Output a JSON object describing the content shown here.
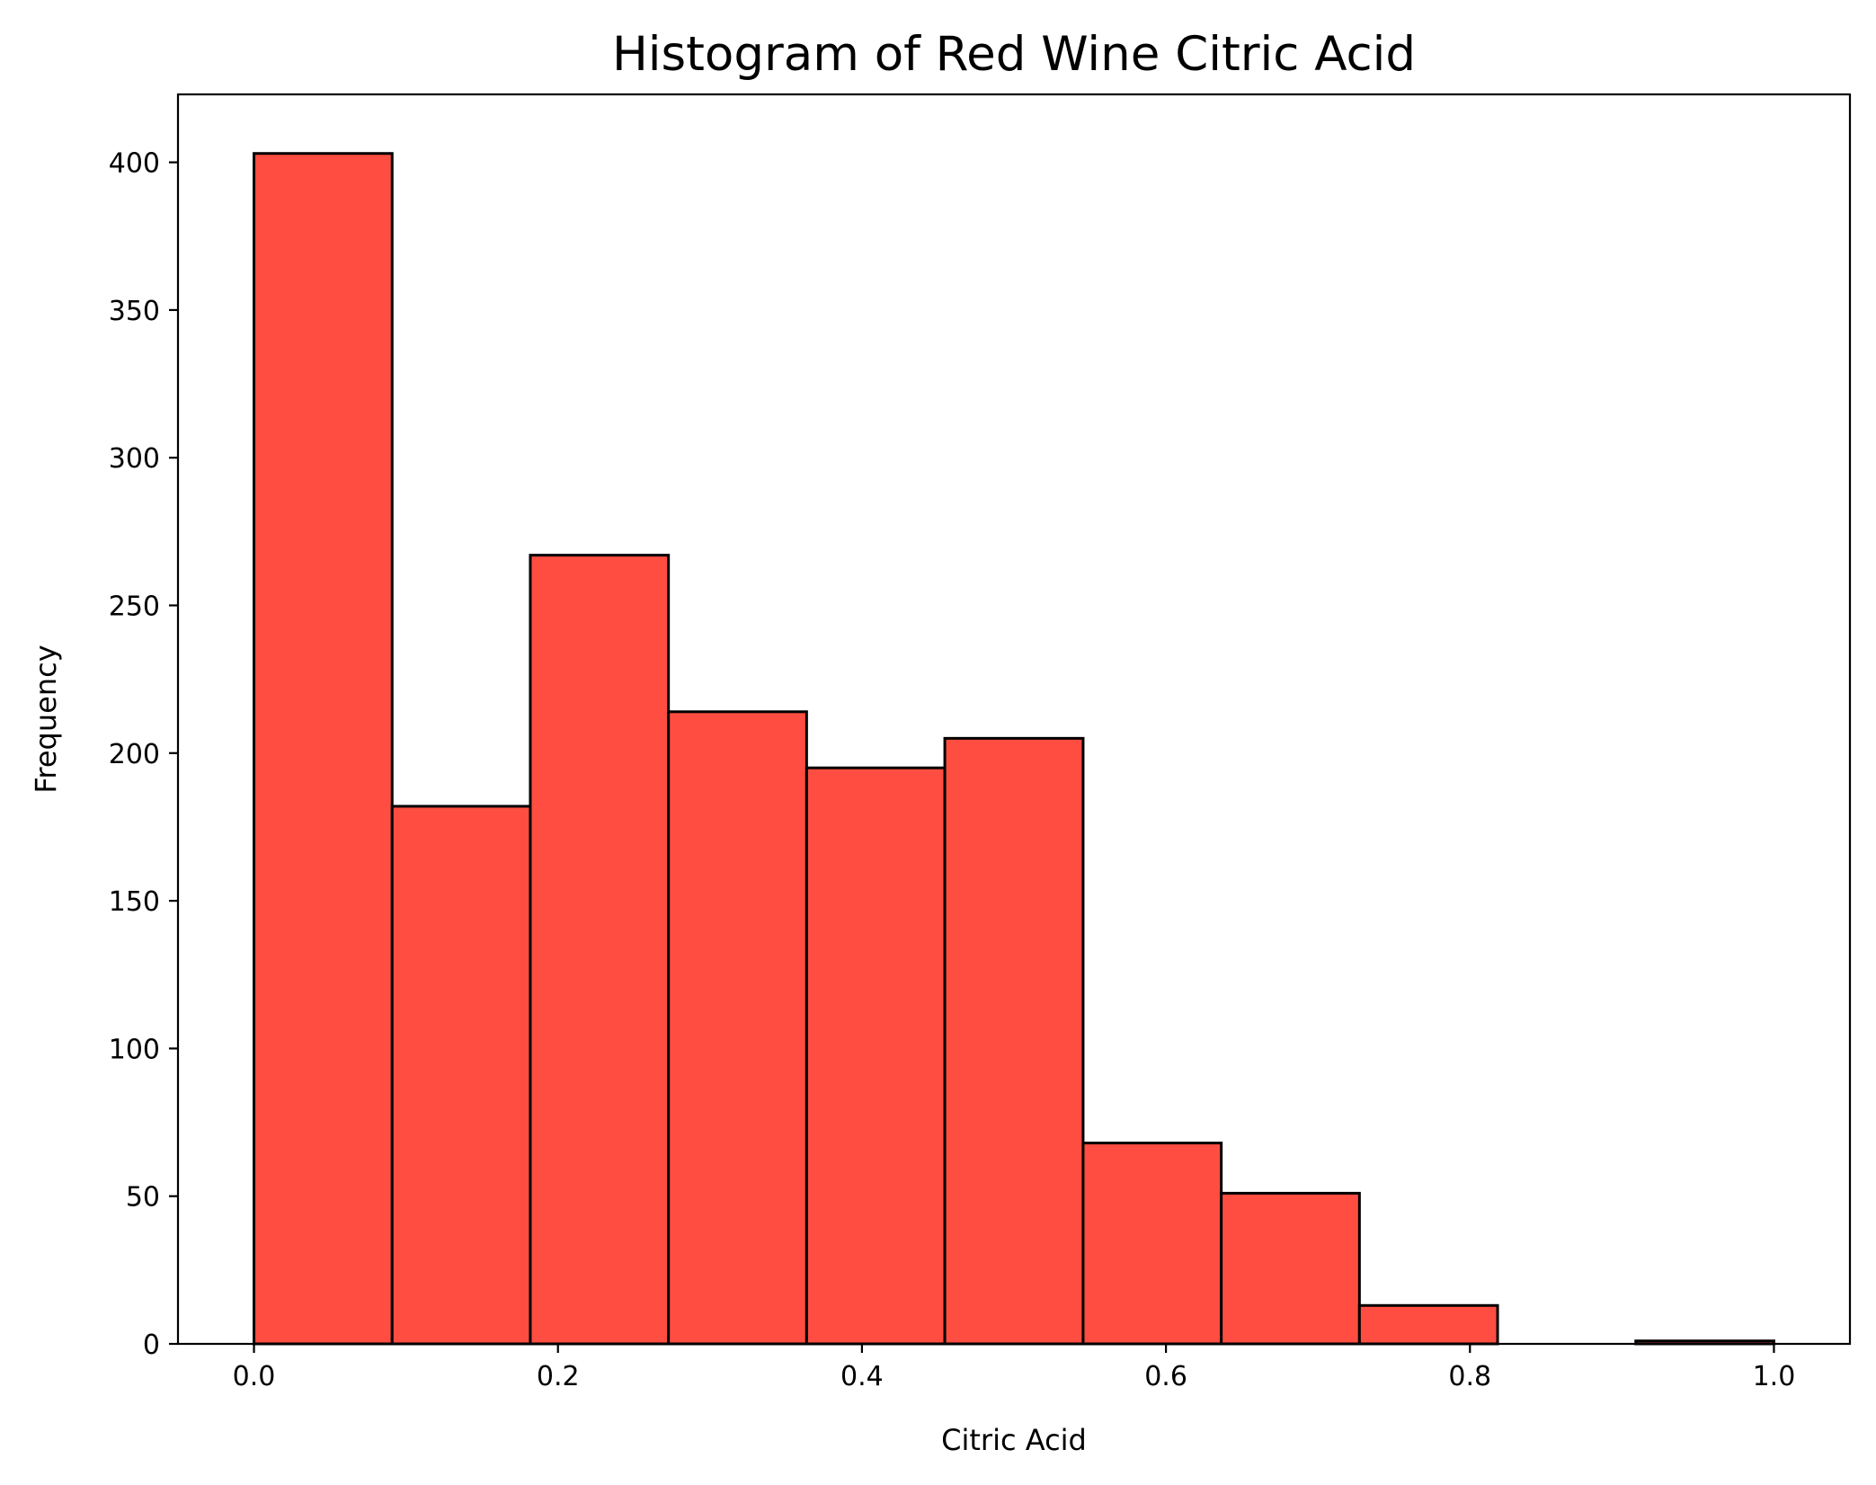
{
  "chart_data": {
    "type": "bar",
    "title": "Histogram of Red Wine Citric Acid",
    "xlabel": "Citric Acid",
    "ylabel": "Frequency",
    "bin_edges": [
      0.0,
      0.0909,
      0.1818,
      0.2727,
      0.3636,
      0.4545,
      0.5455,
      0.6364,
      0.7273,
      0.8182,
      0.9091,
      1.0
    ],
    "values": [
      403,
      182,
      267,
      214,
      195,
      205,
      68,
      51,
      13,
      0,
      1
    ],
    "xlim": [
      -0.05,
      1.05
    ],
    "ylim": [
      0,
      423
    ],
    "xticks": [
      0.0,
      0.2,
      0.4,
      0.6,
      0.8,
      1.0
    ],
    "xtick_labels": [
      "0.0",
      "0.2",
      "0.4",
      "0.6",
      "0.8",
      "1.0"
    ],
    "yticks": [
      0,
      50,
      100,
      150,
      200,
      250,
      300,
      350,
      400
    ],
    "ytick_labels": [
      "0",
      "50",
      "100",
      "150",
      "200",
      "250",
      "300",
      "350",
      "400"
    ],
    "bar_color": "#ff4d41",
    "edge_color": "#000000",
    "grid": false,
    "legend": "none"
  }
}
